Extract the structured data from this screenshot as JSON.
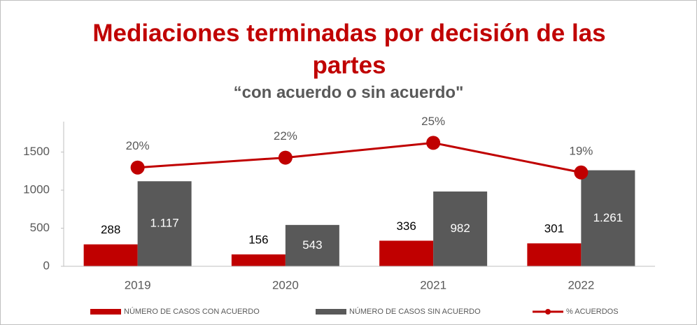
{
  "chart_data": {
    "type": "bar-line",
    "title": "Mediaciones terminadas por decisión de las partes",
    "subtitle": "“con acuerdo o sin acuerdo\"",
    "categories": [
      "2019",
      "2020",
      "2021",
      "2022"
    ],
    "series": [
      {
        "name": "NÚMERO DE CASOS CON ACUERDO",
        "color": "#c00000",
        "values": [
          288,
          156,
          336,
          301
        ]
      },
      {
        "name": "NÚMERO DE CASOS SIN ACUERDO",
        "color": "#595959",
        "values": [
          1117,
          543,
          982,
          1261
        ],
        "value_labels": [
          "1.117",
          "543",
          "982",
          "1.261"
        ]
      },
      {
        "name": "% ACUERDOS",
        "color": "#c00000",
        "axis": "y2",
        "values": [
          20,
          22,
          25,
          19
        ],
        "value_labels": [
          "20%",
          "22%",
          "25%",
          "19%"
        ]
      }
    ],
    "ylim": [
      0,
      1900
    ],
    "yticks": [
      0,
      500,
      1000,
      1500
    ],
    "y2lim": [
      0,
      29.3
    ],
    "legend": "bottom"
  }
}
